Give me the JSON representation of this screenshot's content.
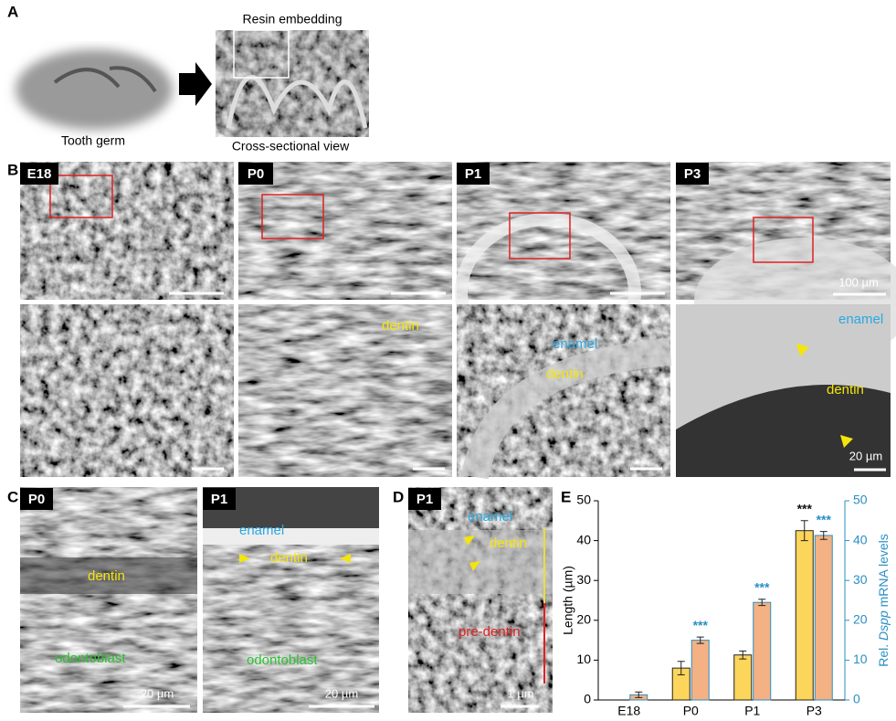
{
  "panel_a": {
    "label": "A",
    "step": "Resin embedding",
    "source": "Tooth germ",
    "result": "Cross-sectional view"
  },
  "panel_b": {
    "label": "B",
    "images": [
      {
        "stage": "E18"
      },
      {
        "stage": "P0",
        "labels": [
          "dentin"
        ]
      },
      {
        "stage": "P1",
        "labels": [
          "enamel",
          "dentin"
        ]
      },
      {
        "stage": "P3",
        "labels": [
          "enamel",
          "dentin"
        ]
      }
    ],
    "scale_bar_top": "100 µm",
    "scale_bar_bottom": "20 µm"
  },
  "panel_c": {
    "label": "C",
    "images": [
      {
        "stage": "P0",
        "labels": [
          "dentin",
          "odontoblast"
        ],
        "scale_bar": "20 µm"
      },
      {
        "stage": "P1",
        "labels": [
          "enamel",
          "dentin",
          "odontoblast"
        ],
        "scale_bar": "20 µm"
      }
    ]
  },
  "panel_d": {
    "label": "D",
    "stage": "P1",
    "labels": [
      "enamel",
      "dentin",
      "pre-dentin"
    ],
    "scale_bar": "1 µm"
  },
  "chart_data": {
    "type": "bar",
    "panel_label": "E",
    "categories": [
      "E18",
      "P0",
      "P1",
      "P3"
    ],
    "y_label": "Length (µm)",
    "y2_label": [
      "Rel.",
      "Dspp",
      "mRNA levels"
    ],
    "series": [
      {
        "color": "#fcd55b",
        "values": [
          null,
          8,
          11.3,
          42.5
        ],
        "errors": [
          null,
          1.7,
          1,
          2.5
        ],
        "annotations": [
          null,
          null,
          null,
          "***"
        ],
        "annotation_color": "#111111"
      },
      {
        "color": "#f4b183",
        "axis": "y2",
        "values": [
          1.3,
          15,
          24.5,
          41.3
        ],
        "errors": [
          0.7,
          0.8,
          0.8,
          1
        ],
        "annotations": [
          null,
          "***",
          "***",
          "***"
        ],
        "annotation_color": "#2a8fc4"
      }
    ],
    "ylim": [
      0,
      50
    ],
    "yticks": [
      0,
      10,
      20,
      30,
      40,
      50
    ],
    "y2lim": [
      0,
      50
    ],
    "y2ticks": [
      0,
      10,
      20,
      30,
      40,
      50
    ],
    "y2_color": "#2a8fc4"
  }
}
